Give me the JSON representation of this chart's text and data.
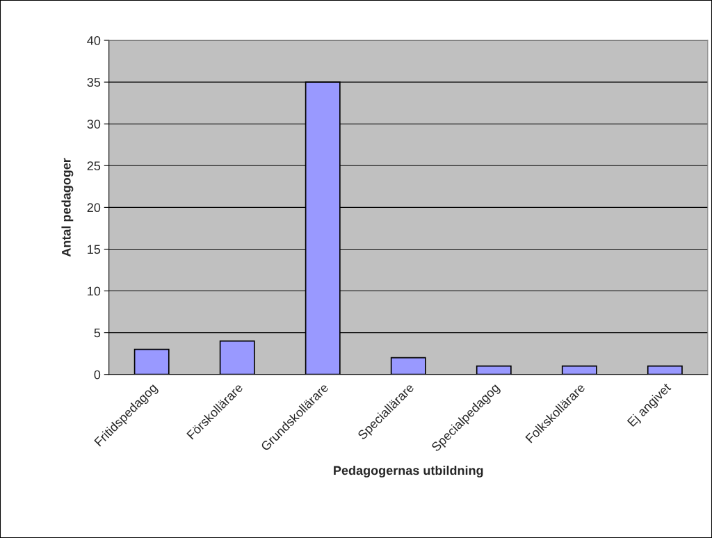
{
  "chart_data": {
    "type": "bar",
    "xlabel": "Pedagogernas utbildning",
    "ylabel": "Antal pedagoger",
    "categories": [
      "Fritidspedagog",
      "Förskollärare",
      "Grundskollärare",
      "Speciallärare",
      "Specialpedagog",
      "Folkskollärare",
      "Ej angivet"
    ],
    "values": [
      3,
      4,
      35,
      2,
      1,
      1,
      1
    ],
    "color": "#9999ff",
    "ylim": [
      0,
      40
    ],
    "yticks": [
      0,
      5,
      10,
      15,
      20,
      25,
      30,
      35,
      40
    ],
    "grid": "y",
    "legend": false
  }
}
